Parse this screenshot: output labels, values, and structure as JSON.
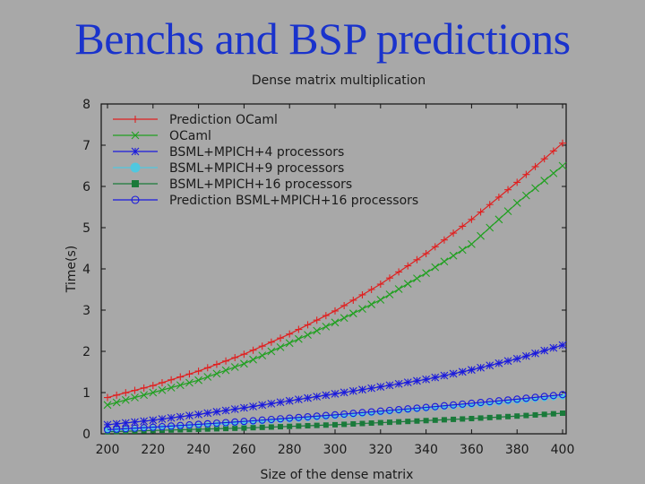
{
  "slide": {
    "title": "Benchs and BSP predictions"
  },
  "chart_data": {
    "type": "line",
    "title": "Dense matrix multiplication",
    "xlabel": "Size of the dense matrix",
    "ylabel": "Time(s)",
    "xlim": [
      200,
      400
    ],
    "ylim": [
      0,
      8
    ],
    "xticks": [
      200,
      220,
      240,
      260,
      280,
      300,
      320,
      340,
      360,
      380,
      400
    ],
    "yticks": [
      0,
      1,
      2,
      3,
      4,
      5,
      6,
      7,
      8
    ],
    "grid": false,
    "legend_position": "top-left",
    "x": [
      200,
      220,
      240,
      260,
      280,
      300,
      320,
      340,
      360,
      380,
      400
    ],
    "series": [
      {
        "name": "Prediction OCaml",
        "color": "#e02020",
        "marker": "plus",
        "values": [
          0.88,
          1.17,
          1.52,
          1.93,
          2.42,
          2.98,
          3.63,
          4.37,
          5.2,
          6.1,
          7.05
        ]
      },
      {
        "name": "OCaml",
        "color": "#20a020",
        "marker": "x",
        "values": [
          0.7,
          1.0,
          1.3,
          1.7,
          2.2,
          2.7,
          3.25,
          3.9,
          4.6,
          5.6,
          6.5
        ]
      },
      {
        "name": "BSML+MPICH+4 processors",
        "color": "#1a1add",
        "marker": "star",
        "values": [
          0.22,
          0.33,
          0.47,
          0.63,
          0.8,
          0.97,
          1.14,
          1.32,
          1.55,
          1.82,
          2.15
        ]
      },
      {
        "name": "BSML+MPICH+9 processors",
        "color": "#50c8e0",
        "marker": "dot",
        "values": [
          0.08,
          0.14,
          0.2,
          0.27,
          0.34,
          0.42,
          0.51,
          0.61,
          0.69,
          0.79,
          0.9
        ]
      },
      {
        "name": "BSML+MPICH+16 processors",
        "color": "#1a7a3a",
        "marker": "square",
        "values": [
          0.05,
          0.08,
          0.11,
          0.14,
          0.18,
          0.22,
          0.27,
          0.32,
          0.37,
          0.43,
          0.5
        ]
      },
      {
        "name": "Prediction BSML+MPICH+16 processors",
        "color": "#1a1add",
        "marker": "circle",
        "values": [
          0.1,
          0.16,
          0.23,
          0.3,
          0.38,
          0.46,
          0.55,
          0.64,
          0.74,
          0.84,
          0.95
        ]
      }
    ]
  }
}
